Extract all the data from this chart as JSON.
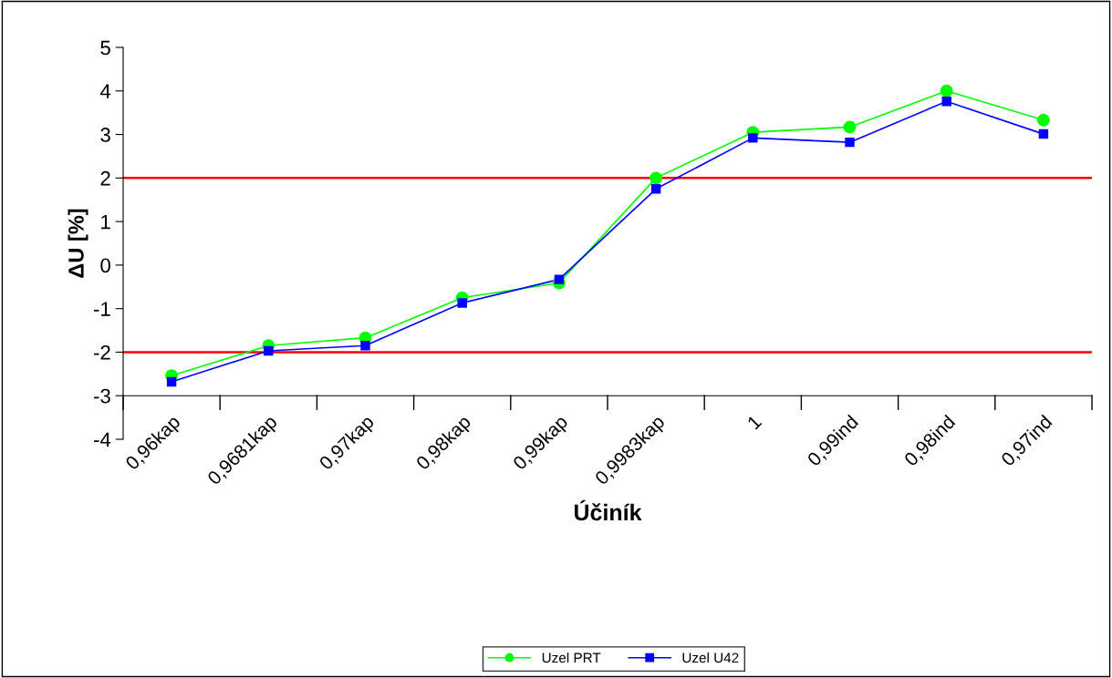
{
  "chart_data": {
    "type": "line",
    "xlabel": "Účiník",
    "ylabel": "ΔU [%]",
    "categories": [
      "0,96kap",
      "0,9681kap",
      "0,97kap",
      "0,98kap",
      "0,99kap",
      "0,9983kap",
      "1",
      "0,99ind",
      "0,98ind",
      "0,97ind"
    ],
    "series": [
      {
        "name": "Uzel PRT",
        "color": "#00ff00",
        "marker": "circle",
        "values": [
          -2.54,
          -1.85,
          -1.67,
          -0.75,
          -0.41,
          2.0,
          3.05,
          3.17,
          4.0,
          3.33
        ]
      },
      {
        "name": "Uzel U42",
        "color": "#0000ff",
        "marker": "square",
        "values": [
          -2.68,
          -1.97,
          -1.85,
          -0.87,
          -0.33,
          1.75,
          2.92,
          2.82,
          3.76,
          3.01
        ]
      }
    ],
    "ylim": [
      -4,
      5
    ],
    "yticks": [
      -4,
      -3,
      -2,
      -1,
      0,
      1,
      2,
      3,
      4,
      5
    ],
    "ref_lines": [
      {
        "axis": "y",
        "value": 2,
        "color": "#ff0000"
      },
      {
        "axis": "y",
        "value": -2,
        "color": "#ff0000"
      }
    ],
    "grid": false,
    "legend": "bottom",
    "line_style": "solid"
  }
}
